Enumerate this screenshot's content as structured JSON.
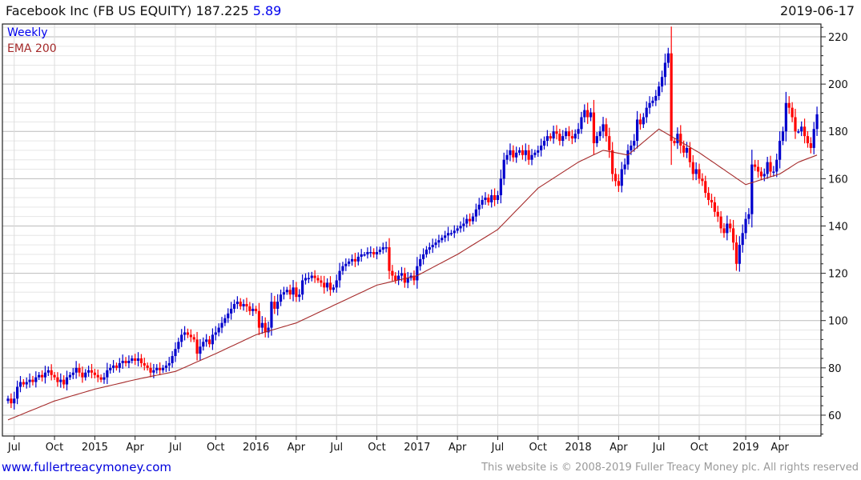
{
  "header": {
    "title": "Facebook Inc (FB US EQUITY) 187.225",
    "change": "5.89",
    "date": "2019-06-17"
  },
  "footer": {
    "site": "www.fullertreacymoney.com",
    "copyright": "This website is © 2008-2019 Fuller Treacy Money plc. All rights reserved"
  },
  "colors": {
    "up": "#0000cc",
    "down": "#ff0000",
    "ema": "#a52a2a",
    "grid": "#dddddd"
  },
  "chart_data": {
    "type": "candlestick",
    "title": "Facebook Inc (FB US EQUITY)",
    "legend": [
      "Weekly",
      "EMA 200"
    ],
    "legend_position": "top-left",
    "frequency": "weekly",
    "first_week": "2014-06-16",
    "last_week": "2019-06-17",
    "ylim": [
      51,
      225
    ],
    "y_ticks": [
      60,
      80,
      100,
      120,
      140,
      160,
      180,
      200,
      220
    ],
    "x_ticks": [
      {
        "label": "Jul",
        "week": 2
      },
      {
        "label": "Oct",
        "week": 15
      },
      {
        "label": "2015",
        "week": 28
      },
      {
        "label": "Apr",
        "week": 41
      },
      {
        "label": "Jul",
        "week": 54
      },
      {
        "label": "Oct",
        "week": 67
      },
      {
        "label": "2016",
        "week": 80
      },
      {
        "label": "Apr",
        "week": 93
      },
      {
        "label": "Jul",
        "week": 106
      },
      {
        "label": "Oct",
        "week": 119
      },
      {
        "label": "2017",
        "week": 132
      },
      {
        "label": "Apr",
        "week": 145
      },
      {
        "label": "Jul",
        "week": 158
      },
      {
        "label": "Oct",
        "week": 171
      },
      {
        "label": "2018",
        "week": 184
      },
      {
        "label": "Apr",
        "week": 197
      },
      {
        "label": "Jul",
        "week": 210
      },
      {
        "label": "Oct",
        "week": 223
      },
      {
        "label": "2019",
        "week": 238
      },
      {
        "label": "Apr",
        "week": 249
      }
    ],
    "weekly_close": [
      67,
      65,
      67,
      72,
      74,
      73,
      74,
      75,
      74,
      76,
      77,
      76,
      78,
      79,
      77,
      76,
      74,
      75,
      73,
      76,
      77,
      78,
      80,
      78,
      76,
      78,
      79,
      78,
      77,
      76,
      75,
      76,
      79,
      80,
      81,
      80,
      82,
      83,
      82,
      83,
      84,
      83,
      84,
      82,
      81,
      80,
      78,
      79,
      80,
      79,
      80,
      81,
      82,
      85,
      88,
      91,
      94,
      95,
      94,
      93,
      92,
      86,
      89,
      91,
      92,
      90,
      94,
      95,
      97,
      99,
      101,
      103,
      105,
      107,
      108,
      106,
      107,
      106,
      104,
      105,
      104,
      97,
      99,
      95,
      97,
      108,
      105,
      108,
      111,
      112,
      113,
      111,
      114,
      110,
      111,
      117,
      118,
      118,
      119,
      118,
      117,
      116,
      114,
      116,
      113,
      114,
      117,
      121,
      123,
      124,
      125,
      126,
      125,
      127,
      128,
      128,
      129,
      129,
      128,
      129,
      130,
      131,
      131,
      121,
      119,
      117,
      119,
      120,
      116,
      118,
      119,
      117,
      123,
      126,
      128,
      130,
      131,
      132,
      133,
      134,
      135,
      136,
      137,
      137,
      138,
      139,
      140,
      141,
      143,
      142,
      144,
      147,
      149,
      151,
      152,
      150,
      153,
      151,
      153,
      160,
      168,
      170,
      172,
      169,
      171,
      172,
      170,
      172,
      168,
      170,
      171,
      172,
      174,
      176,
      178,
      177,
      180,
      179,
      176,
      178,
      180,
      178,
      177,
      179,
      181,
      186,
      189,
      186,
      188,
      175,
      178,
      180,
      183,
      178,
      172,
      162,
      159,
      157,
      164,
      166,
      172,
      174,
      176,
      185,
      183,
      186,
      190,
      192,
      193,
      195,
      199,
      203,
      209,
      213,
      176,
      175,
      179,
      174,
      171,
      173,
      167,
      162,
      164,
      160,
      159,
      154,
      151,
      150,
      146,
      144,
      139,
      137,
      141,
      139,
      133,
      124,
      132,
      137,
      143,
      145,
      166,
      165,
      163,
      161,
      162,
      167,
      163,
      163,
      168,
      176,
      180,
      192,
      190,
      186,
      180,
      180,
      182,
      178,
      175,
      173,
      181,
      187.225
    ],
    "ema200": [
      [
        0,
        58
      ],
      [
        15,
        66
      ],
      [
        28,
        71
      ],
      [
        41,
        75
      ],
      [
        54,
        78.5
      ],
      [
        67,
        86
      ],
      [
        80,
        94
      ],
      [
        93,
        99
      ],
      [
        106,
        107
      ],
      [
        119,
        115
      ],
      [
        132,
        119
      ],
      [
        145,
        128
      ],
      [
        158,
        138.5
      ],
      [
        171,
        156
      ],
      [
        184,
        167
      ],
      [
        192,
        172
      ],
      [
        200,
        170
      ],
      [
        210,
        181
      ],
      [
        223,
        171
      ],
      [
        238,
        157.5
      ],
      [
        244,
        160
      ],
      [
        249,
        162
      ],
      [
        255,
        167
      ],
      [
        261,
        170
      ]
    ]
  }
}
